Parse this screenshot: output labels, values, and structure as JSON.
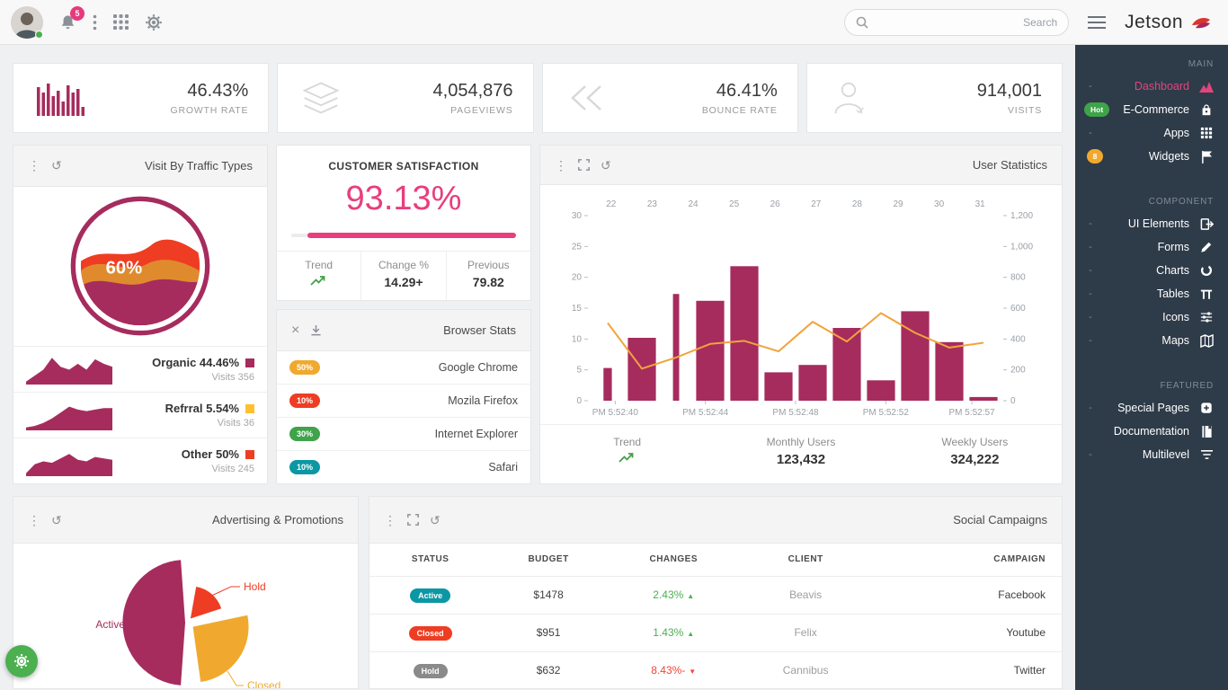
{
  "topbar": {
    "notification_count": "5",
    "search_placeholder": "Search",
    "brand": "Jetson"
  },
  "stat_cards": [
    {
      "icon": "bar-chart-icon",
      "value": "46.43%",
      "label": "GROWTH RATE"
    },
    {
      "icon": "layers-icon",
      "value": "4,054,876",
      "label": "PAGEVIEWS"
    },
    {
      "icon": "rewind-icon",
      "value": "46.41%",
      "label": "BOUNCE RATE"
    },
    {
      "icon": "user-icon",
      "value": "914,001",
      "label": "VISITS"
    }
  ],
  "traffic": {
    "title": "Visit By Traffic Types",
    "gauge_value": "60%",
    "sources": [
      {
        "name": "Organic 44.46%",
        "visits": "Visits 356",
        "color": "#a62c5e",
        "spark": [
          1,
          3,
          5,
          9,
          6,
          5,
          7,
          5,
          8.5,
          7,
          6
        ]
      },
      {
        "name": "Refrral 5.54%",
        "visits": "Visits 36",
        "color": "#fdc02f",
        "spark": [
          1,
          1.5,
          2.5,
          4,
          6,
          8,
          7,
          6.5,
          7,
          7.5,
          7.5
        ]
      },
      {
        "name": "Other 50%",
        "visits": "Visits 245",
        "color": "#ee3d23",
        "spark": [
          1,
          4,
          5,
          4.5,
          6,
          7.5,
          5.5,
          5,
          6.5,
          6,
          5.5
        ]
      }
    ]
  },
  "satisfaction": {
    "title": "CUSTOMER SATISFACTION",
    "value": "93.13%",
    "progress_pct": 93,
    "trend_label": "Trend",
    "change_label": "Change %",
    "change_value": "14.29+",
    "previous_label": "Previous",
    "previous_value": "79.82"
  },
  "browser_stats": {
    "title": "Browser Stats",
    "rows": [
      {
        "pct": "50%",
        "color": "#f0a92e",
        "name": "Google Chrome"
      },
      {
        "pct": "10%",
        "color": "#ee3d23",
        "name": "Mozila Firefox"
      },
      {
        "pct": "30%",
        "color": "#3fa34a",
        "name": "Internet Explorer"
      },
      {
        "pct": "10%",
        "color": "#0b97a4",
        "name": "Safari"
      }
    ]
  },
  "user_statistics": {
    "title": "User Statistics",
    "trend_label": "Trend",
    "monthly_label": "Monthly Users",
    "monthly_value": "123,432",
    "weekly_label": "Weekly Users",
    "weekly_value": "324,222"
  },
  "advertising": {
    "title": "Advertising & Promotions"
  },
  "campaigns": {
    "title": "Social Campaigns",
    "columns": [
      "STATUS",
      "BUDGET",
      "CHANGES",
      "CLIENT",
      "CAMPAIGN"
    ],
    "rows": [
      {
        "status": "Active",
        "status_color": "#0b97a4",
        "budget": "$1478",
        "change": "2.43%",
        "direction": "up",
        "client": "Beavis",
        "campaign": "Facebook"
      },
      {
        "status": "Closed",
        "status_color": "#ee3d23",
        "budget": "$951",
        "change": "1.43%",
        "direction": "up",
        "client": "Felix",
        "campaign": "Youtube"
      },
      {
        "status": "Hold",
        "status_color": "#8a8a8a",
        "budget": "$632",
        "change": "8.43%-",
        "direction": "down",
        "client": "Cannibus",
        "campaign": "Twitter"
      }
    ]
  },
  "sidebar": {
    "sections": [
      {
        "header": "MAIN",
        "items": [
          {
            "label": "Dashboard",
            "icon": "dashboard-icon",
            "active": true,
            "chevron": "-"
          },
          {
            "label": "E-Commerce",
            "icon": "shopping-bag-icon",
            "badge": "Hot",
            "badge_color": "#3fa34a"
          },
          {
            "label": "Apps",
            "icon": "apps-grid-icon",
            "chevron": "-"
          },
          {
            "label": "Widgets",
            "icon": "flag-icon",
            "badge": "8",
            "badge_color": "#f0a92e"
          }
        ]
      },
      {
        "header": "COMPONENT",
        "items": [
          {
            "label": "UI Elements",
            "icon": "ui-elements-icon",
            "chevron": "-"
          },
          {
            "label": "Forms",
            "icon": "pencil-icon",
            "chevron": "-"
          },
          {
            "label": "Charts",
            "icon": "chart-circle-icon",
            "chevron": "-"
          },
          {
            "label": "Tables",
            "icon": "table-icon",
            "chevron": "-"
          },
          {
            "label": "Icons",
            "icon": "sliders-icon",
            "chevron": "-"
          },
          {
            "label": "Maps",
            "icon": "map-icon",
            "chevron": "-"
          }
        ]
      },
      {
        "header": "FEATURED",
        "items": [
          {
            "label": "Special Pages",
            "icon": "plus-square-icon",
            "chevron": "-"
          },
          {
            "label": "Documentation",
            "icon": "book-icon"
          },
          {
            "label": "Multilevel",
            "icon": "filter-lines-icon",
            "chevron": "-"
          }
        ]
      }
    ]
  },
  "chart_data": [
    {
      "id": "user-statistics",
      "type": "bar",
      "title": "User Statistics",
      "top_axis_labels": [
        "22",
        "23",
        "24",
        "25",
        "26",
        "27",
        "28",
        "29",
        "30",
        "31"
      ],
      "x_time_labels": [
        "PM 5:52:40",
        "PM 5:52:44",
        "PM 5:52:48",
        "PM 5:52:52",
        "PM 5:52:57"
      ],
      "left_axis": {
        "min": 0,
        "max": 30,
        "step": 5
      },
      "right_axis_labels": [
        "0",
        "200",
        "400",
        "600",
        "800",
        "1,000",
        "1,200"
      ],
      "series": [
        {
          "name": "bars",
          "color": "#a62c5e",
          "values": [
            5.3,
            10.2,
            17.3,
            16.2,
            21.8,
            4.6,
            5.8,
            11.8,
            3.3,
            14.5,
            9.5,
            0.6
          ],
          "widths": [
            0.3,
            1,
            0.22,
            1,
            1,
            1,
            1,
            1,
            1,
            1,
            1,
            1
          ]
        },
        {
          "name": "line",
          "color": "#f2a33c",
          "values": [
            12.6,
            5.2,
            7.0,
            9.2,
            9.7,
            8.0,
            12.8,
            9.6,
            14.2,
            11.0,
            8.6,
            9.4
          ]
        }
      ],
      "grid": false,
      "legend": "none"
    },
    {
      "id": "traffic-gauge",
      "type": "area",
      "title": "Visit By Traffic Types",
      "value_label": "60%",
      "colors": {
        "ring": "#a62c5e",
        "top_wave": "#ee3d23",
        "mid_wave": "#e08a2e",
        "bottom_fill": "#a62c5e"
      }
    },
    {
      "id": "advertising-pie",
      "type": "pie",
      "title": "Advertising & Promotions",
      "slices": [
        {
          "label": "Active",
          "color": "#a62c5e",
          "start_deg": 184,
          "end_deg": 356,
          "radius": 70
        },
        {
          "label": "Hold",
          "color": "#ee3d23",
          "start_deg": 10,
          "end_deg": 72,
          "radius": 36
        },
        {
          "label": "Closed",
          "color": "#f0a92e",
          "start_deg": 78,
          "end_deg": 172,
          "radius": 62
        }
      ]
    },
    {
      "id": "customer-satisfaction",
      "type": "area",
      "title": "CUSTOMER SATISFACTION",
      "value": 93.13,
      "previous": 79.82,
      "change": "14.29+"
    }
  ]
}
